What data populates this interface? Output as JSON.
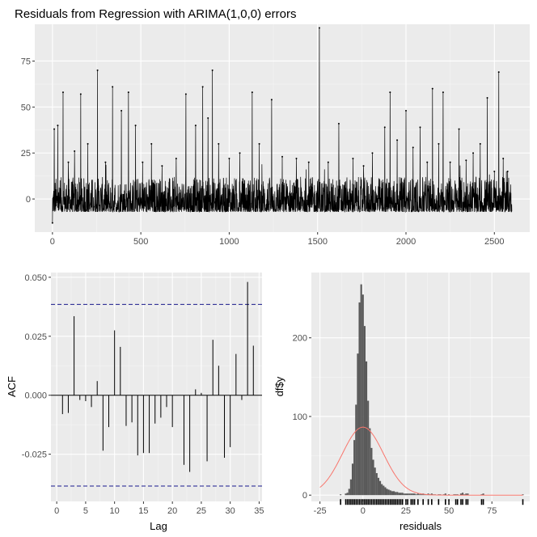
{
  "chart_data": [
    {
      "type": "line",
      "title": "Residuals from Regression with ARIMA(1,0,0) errors",
      "xlim": [
        -100,
        2700
      ],
      "ylim": [
        -18,
        95
      ],
      "x_ticks": [
        0,
        500,
        1000,
        1500,
        2000,
        2500
      ],
      "y_ticks": [
        0,
        25,
        50,
        75
      ],
      "n": 2600,
      "baseline_range": [
        -7,
        12
      ],
      "spikes": [
        {
          "x": 0,
          "y": -13
        },
        {
          "x": 10,
          "y": 38
        },
        {
          "x": 30,
          "y": 40
        },
        {
          "x": 60,
          "y": 58
        },
        {
          "x": 90,
          "y": 20
        },
        {
          "x": 125,
          "y": 26
        },
        {
          "x": 160,
          "y": 57
        },
        {
          "x": 200,
          "y": 30
        },
        {
          "x": 255,
          "y": 70
        },
        {
          "x": 300,
          "y": 20
        },
        {
          "x": 340,
          "y": 61
        },
        {
          "x": 390,
          "y": 48
        },
        {
          "x": 430,
          "y": 58
        },
        {
          "x": 470,
          "y": 40
        },
        {
          "x": 510,
          "y": 20
        },
        {
          "x": 560,
          "y": 30
        },
        {
          "x": 620,
          "y": 18
        },
        {
          "x": 700,
          "y": 22
        },
        {
          "x": 755,
          "y": 57
        },
        {
          "x": 810,
          "y": 40
        },
        {
          "x": 850,
          "y": 61
        },
        {
          "x": 880,
          "y": 44
        },
        {
          "x": 905,
          "y": 70
        },
        {
          "x": 940,
          "y": 30
        },
        {
          "x": 1000,
          "y": 22
        },
        {
          "x": 1060,
          "y": 25
        },
        {
          "x": 1130,
          "y": 58
        },
        {
          "x": 1170,
          "y": 30
        },
        {
          "x": 1240,
          "y": 54
        },
        {
          "x": 1300,
          "y": 23
        },
        {
          "x": 1380,
          "y": 22
        },
        {
          "x": 1450,
          "y": 20
        },
        {
          "x": 1510,
          "y": 93
        },
        {
          "x": 1560,
          "y": 20
        },
        {
          "x": 1620,
          "y": 41
        },
        {
          "x": 1700,
          "y": 22
        },
        {
          "x": 1760,
          "y": 18
        },
        {
          "x": 1810,
          "y": 25
        },
        {
          "x": 1880,
          "y": 39
        },
        {
          "x": 1910,
          "y": 58
        },
        {
          "x": 1950,
          "y": 32
        },
        {
          "x": 2000,
          "y": 48
        },
        {
          "x": 2040,
          "y": 28
        },
        {
          "x": 2080,
          "y": 39
        },
        {
          "x": 2120,
          "y": 20
        },
        {
          "x": 2150,
          "y": 60
        },
        {
          "x": 2185,
          "y": 30
        },
        {
          "x": 2210,
          "y": 58
        },
        {
          "x": 2250,
          "y": 20
        },
        {
          "x": 2300,
          "y": 38
        },
        {
          "x": 2340,
          "y": 21
        },
        {
          "x": 2380,
          "y": 25
        },
        {
          "x": 2420,
          "y": 30
        },
        {
          "x": 2460,
          "y": 55
        },
        {
          "x": 2500,
          "y": 15
        },
        {
          "x": 2525,
          "y": 69
        },
        {
          "x": 2550,
          "y": 22
        },
        {
          "x": 2575,
          "y": 15
        }
      ]
    },
    {
      "type": "bar",
      "subtype": "acf",
      "xlabel": "Lag",
      "ylabel": "ACF",
      "xlim": [
        -1,
        35.5
      ],
      "ylim": [
        -0.045,
        0.052
      ],
      "x_ticks": [
        0,
        5,
        10,
        15,
        20,
        25,
        30,
        35
      ],
      "y_ticks": [
        -0.025,
        0,
        0.025,
        0.05
      ],
      "y_tick_labels": [
        "-0.025",
        "0.000",
        "0.025",
        "0.050"
      ],
      "confidence_bound": 0.0385,
      "lags": [
        1,
        2,
        3,
        4,
        5,
        6,
        7,
        8,
        9,
        10,
        11,
        12,
        13,
        14,
        15,
        16,
        17,
        18,
        19,
        20,
        21,
        22,
        23,
        24,
        25,
        26,
        27,
        28,
        29,
        30,
        31,
        32,
        33,
        34
      ],
      "values": [
        -0.008,
        -0.0075,
        0.0335,
        -0.002,
        -0.0025,
        -0.005,
        0.006,
        -0.0235,
        -0.0135,
        0.0275,
        0.0205,
        -0.013,
        -0.0115,
        -0.0255,
        -0.0245,
        -0.0245,
        -0.012,
        -0.0095,
        -0.005,
        -0.0135,
        -0.0,
        -0.0295,
        -0.0325,
        0.0025,
        0.001,
        -0.028,
        0.0235,
        0.0125,
        -0.0265,
        -0.022,
        0.0175,
        -0.002,
        0.048,
        0.021
      ]
    },
    {
      "type": "bar",
      "subtype": "histogram",
      "xlabel": "residuals",
      "ylabel": "df$y",
      "xlim": [
        -30,
        97
      ],
      "ylim": [
        -8,
        283
      ],
      "x_ticks": [
        -25,
        0,
        25,
        50,
        75
      ],
      "y_ticks": [
        0,
        100,
        200
      ],
      "bin_width": 1,
      "bins": [
        {
          "x": -13,
          "count": 1
        },
        {
          "x": -10,
          "count": 2
        },
        {
          "x": -9,
          "count": 3
        },
        {
          "x": -8,
          "count": 8
        },
        {
          "x": -7,
          "count": 20
        },
        {
          "x": -6,
          "count": 40
        },
        {
          "x": -5,
          "count": 70
        },
        {
          "x": -4,
          "count": 115
        },
        {
          "x": -3,
          "count": 180
        },
        {
          "x": -2,
          "count": 245
        },
        {
          "x": -1,
          "count": 268
        },
        {
          "x": 0,
          "count": 255
        },
        {
          "x": 1,
          "count": 215
        },
        {
          "x": 2,
          "count": 170
        },
        {
          "x": 3,
          "count": 120
        },
        {
          "x": 4,
          "count": 85
        },
        {
          "x": 5,
          "count": 60
        },
        {
          "x": 6,
          "count": 45
        },
        {
          "x": 7,
          "count": 35
        },
        {
          "x": 8,
          "count": 28
        },
        {
          "x": 9,
          "count": 22
        },
        {
          "x": 10,
          "count": 18
        },
        {
          "x": 11,
          "count": 14
        },
        {
          "x": 12,
          "count": 12
        },
        {
          "x": 13,
          "count": 10
        },
        {
          "x": 14,
          "count": 8
        },
        {
          "x": 15,
          "count": 7
        },
        {
          "x": 16,
          "count": 6
        },
        {
          "x": 17,
          "count": 5
        },
        {
          "x": 18,
          "count": 5
        },
        {
          "x": 19,
          "count": 4
        },
        {
          "x": 20,
          "count": 4
        },
        {
          "x": 21,
          "count": 3
        },
        {
          "x": 22,
          "count": 3
        },
        {
          "x": 23,
          "count": 3
        },
        {
          "x": 24,
          "count": 2
        },
        {
          "x": 25,
          "count": 2
        },
        {
          "x": 26,
          "count": 2
        },
        {
          "x": 27,
          "count": 2
        },
        {
          "x": 28,
          "count": 2
        },
        {
          "x": 29,
          "count": 2
        },
        {
          "x": 30,
          "count": 2
        },
        {
          "x": 31,
          "count": 1
        },
        {
          "x": 32,
          "count": 2
        },
        {
          "x": 33,
          "count": 1
        },
        {
          "x": 34,
          "count": 1
        },
        {
          "x": 35,
          "count": 2
        },
        {
          "x": 36,
          "count": 1
        },
        {
          "x": 37,
          "count": 1
        },
        {
          "x": 38,
          "count": 2
        },
        {
          "x": 39,
          "count": 1
        },
        {
          "x": 40,
          "count": 2
        },
        {
          "x": 41,
          "count": 1
        },
        {
          "x": 42,
          "count": 1
        },
        {
          "x": 44,
          "count": 1
        },
        {
          "x": 45,
          "count": 1
        },
        {
          "x": 47,
          "count": 1
        },
        {
          "x": 48,
          "count": 2
        },
        {
          "x": 50,
          "count": 1
        },
        {
          "x": 53,
          "count": 1
        },
        {
          "x": 54,
          "count": 1
        },
        {
          "x": 55,
          "count": 1
        },
        {
          "x": 57,
          "count": 2
        },
        {
          "x": 58,
          "count": 3
        },
        {
          "x": 59,
          "count": 1
        },
        {
          "x": 60,
          "count": 2
        },
        {
          "x": 61,
          "count": 2
        },
        {
          "x": 69,
          "count": 1
        },
        {
          "x": 70,
          "count": 2
        },
        {
          "x": 93,
          "count": 1
        }
      ],
      "normal_curve": {
        "mean": 0,
        "sd": 12,
        "n": 2600,
        "color": "#f8766d"
      },
      "rug": [
        -13,
        -10,
        -9,
        -8,
        -7,
        -6,
        -5,
        -4,
        -3,
        -2,
        -1,
        0,
        1,
        2,
        3,
        4,
        5,
        6,
        7,
        8,
        9,
        10,
        11,
        12,
        13,
        14,
        15,
        16,
        17,
        18,
        19,
        20,
        21,
        22,
        23,
        25,
        26,
        28,
        29,
        30,
        32,
        35,
        38,
        40,
        44,
        48,
        50,
        54,
        55,
        57,
        58,
        60,
        61,
        69,
        70,
        93
      ]
    }
  ]
}
